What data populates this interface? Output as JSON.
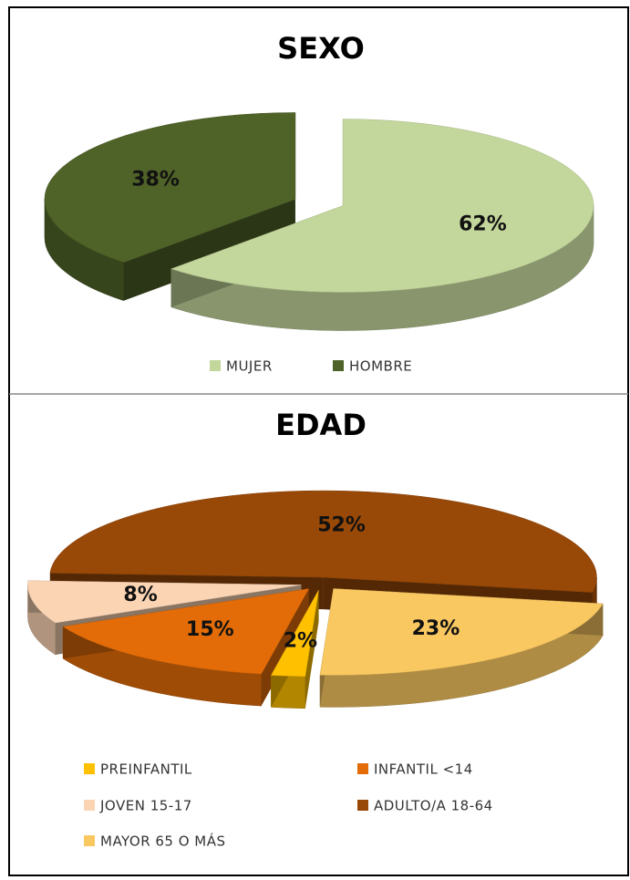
{
  "chart_data": [
    {
      "type": "pie",
      "title": "SEXO",
      "categories": [
        "MUJER",
        "HOMBRE"
      ],
      "values": [
        62,
        38
      ],
      "value_labels": [
        "62%",
        "38%"
      ],
      "colors": [
        "#c3d69b",
        "#4f6228"
      ]
    },
    {
      "type": "pie",
      "title": "EDAD",
      "categories": [
        "PREINFANTIL",
        "INFANTIL <14",
        "JOVEN 15-17",
        "ADULTO/A 18-64",
        "MAYOR 65 O MÁS"
      ],
      "values": [
        2,
        15,
        8,
        52,
        23
      ],
      "value_labels": [
        "2%",
        "15%",
        "8%",
        "52%",
        "23%"
      ],
      "colors": [
        "#ffc000",
        "#e36c09",
        "#fbd4b4",
        "#984807",
        "#fac861"
      ]
    }
  ]
}
